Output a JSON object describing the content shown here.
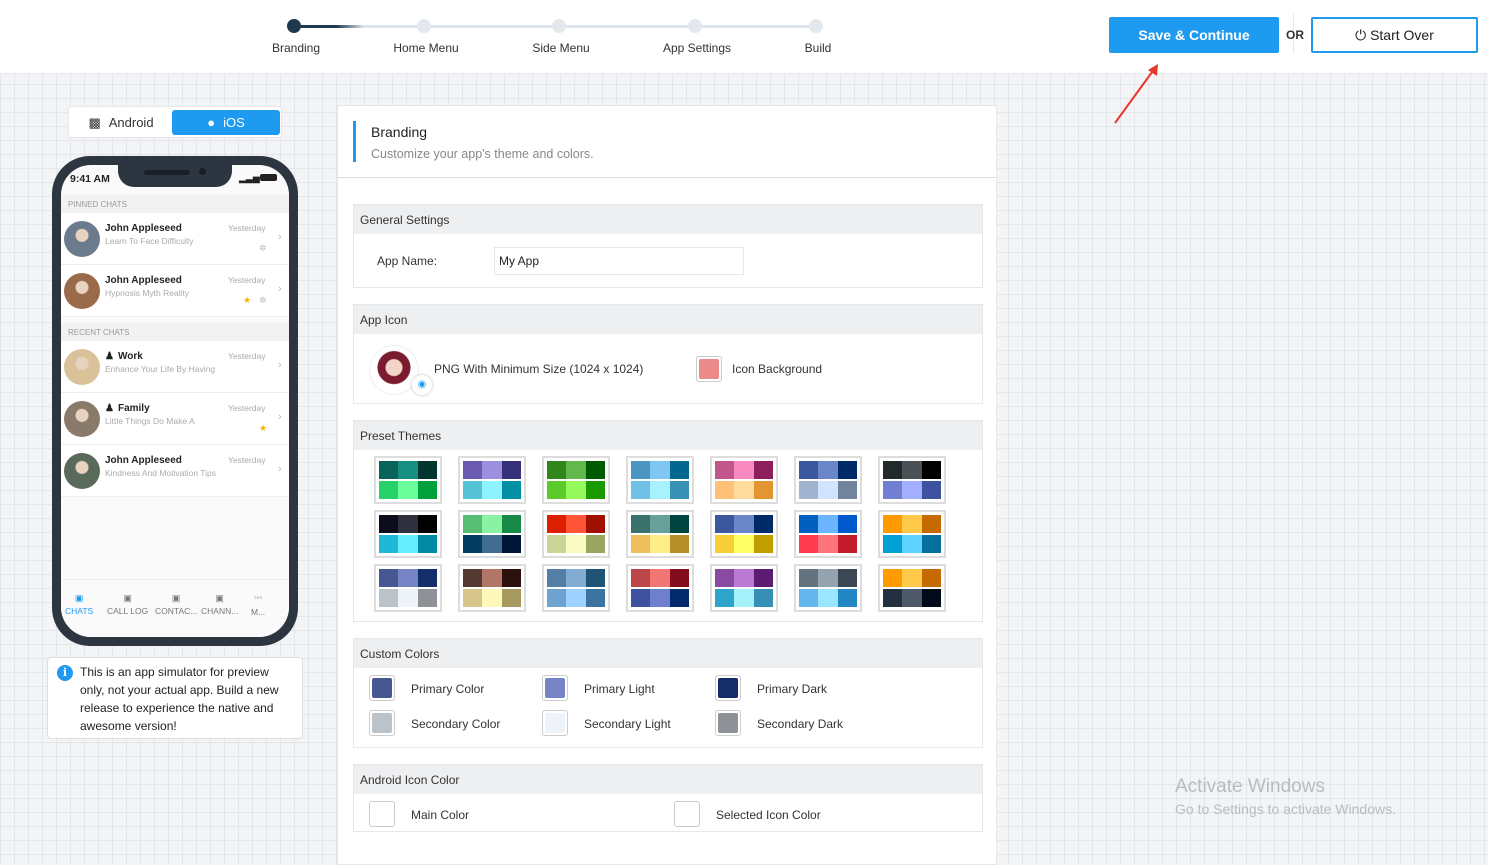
{
  "stepper": {
    "steps": [
      "Branding",
      "Home Menu",
      "Side Menu",
      "App Settings",
      "Build"
    ],
    "active": 0
  },
  "actions": {
    "save": "Save & Continue",
    "or": "OR",
    "start_over": "Start Over",
    "accent": "#1e9bf0"
  },
  "platform_tabs": {
    "android": "Android",
    "ios": "iOS",
    "selected": "iOS"
  },
  "phone": {
    "time": "9:41 AM",
    "pinned_label": "PINNED CHATS",
    "recent_label": "RECENT CHATS",
    "pinned": [
      {
        "name": "John Appleseed",
        "message": "Learn To Face Difficulty",
        "time": "Yesterday",
        "pinned": true,
        "starred": false
      },
      {
        "name": "John Appleseed",
        "message": "Hypnosis Myth Reality",
        "time": "Yesterday",
        "pinned": true,
        "starred": true
      }
    ],
    "recent": [
      {
        "name": "Work",
        "message": "Enhance Your Life By Having",
        "time": "Yesterday",
        "group": true,
        "starred": false
      },
      {
        "name": "Family",
        "message": "Little Things Do Make A",
        "time": "Yesterday",
        "group": true,
        "starred": true
      },
      {
        "name": "John Appleseed",
        "message": "Kindness And Motivation Tips",
        "time": "Yesterday",
        "group": false,
        "starred": false
      }
    ],
    "nav": [
      "CHATS",
      "CALL LOG",
      "CONTAC...",
      "CHANN...",
      "M..."
    ]
  },
  "info_note": "This is an app simulator for preview only, not your actual app. Build a new release to experience the native and awesome version!",
  "branding": {
    "title": "Branding",
    "subtitle": "Customize your app's theme and colors."
  },
  "general": {
    "header": "General Settings",
    "app_name_label": "App Name:",
    "app_name_value": "My App"
  },
  "app_icon": {
    "header": "App Icon",
    "hint": "PNG With Minimum Size (1024 x 1024)",
    "background_label": "Icon Background",
    "background_color": "#ec8a8a"
  },
  "preset_themes": {
    "header": "Preset Themes",
    "themes": [
      [
        "#0a6358",
        "#168f80",
        "#023430",
        "#25d36a",
        "#6bff9c",
        "#00a03c"
      ],
      [
        "#6a5bb0",
        "#9b8fe0",
        "#35307a",
        "#56c2d6",
        "#8ff2ff",
        "#008fa3"
      ],
      [
        "#2f871c",
        "#62b84a",
        "#005a00",
        "#5dca2b",
        "#94fa5a",
        "#1b9a00"
      ],
      [
        "#4b95c2",
        "#7fc6f0",
        "#02688f",
        "#6fc1e5",
        "#a8f1ff",
        "#3892b6"
      ],
      [
        "#c0568a",
        "#f98abf",
        "#8e1f5d",
        "#ffc176",
        "#ffdc9c",
        "#e29532"
      ],
      [
        "#3b579d",
        "#6b86c8",
        "#002b69",
        "#a0b4d0",
        "#d1e4ff",
        "#71849e"
      ],
      [
        "#22292c",
        "#4b5256",
        "#000000",
        "#717fd2",
        "#a3aefe",
        "#3d52a0"
      ],
      [
        "#0c0c1c",
        "#30303f",
        "#000000",
        "#20b8d8",
        "#66eeff",
        "#008aa6"
      ],
      [
        "#57bd73",
        "#8af2a2",
        "#168a46",
        "#033e62",
        "#416b91",
        "#001638"
      ],
      [
        "#dc1f00",
        "#ff5536",
        "#a01000",
        "#cbd595",
        "#f9fbc3",
        "#9ba462"
      ],
      [
        "#3a716c",
        "#68a09a",
        "#004540",
        "#edbe5c",
        "#feee89",
        "#b68f2a"
      ],
      [
        "#3b579d",
        "#6b86c8",
        "#002b69",
        "#f7ce35",
        "#ffff66",
        "#c09e00"
      ],
      [
        "#0060c0",
        "#6cb4ff",
        "#005ace",
        "#ff3b4d",
        "#ff737a",
        "#c31d2b"
      ],
      [
        "#ff9b00",
        "#ffc94a",
        "#c56a00",
        "#00a0d2",
        "#5ed2ff",
        "#0570a0"
      ],
      [
        "#465792",
        "#7684c6",
        "#132e68",
        "#bbc3c8",
        "#eef3f9",
        "#8e9297"
      ],
      [
        "#553933",
        "#b17668",
        "#2b120c",
        "#d7c68c",
        "#fff8bb",
        "#a69a61"
      ],
      [
        "#547fa4",
        "#83acd5",
        "#1f5474",
        "#6da3ce",
        "#9ed3ff",
        "#3b74a0"
      ],
      [
        "#bc454a",
        "#f27673",
        "#840d1d",
        "#3e52a0",
        "#6f7fd0",
        "#022b6d"
      ],
      [
        "#894aa2",
        "#bb79d3",
        "#5c1c72",
        "#2fa4cb",
        "#a6f2fb",
        "#3590b4"
      ],
      [
        "#65737f",
        "#95a3ae",
        "#3b4753",
        "#65b6ef",
        "#9ae5ff",
        "#2386c4"
      ],
      [
        "#ff9b00",
        "#ffc94a",
        "#c56a00",
        "#23303f",
        "#4d5868",
        "#000a1a"
      ]
    ]
  },
  "custom_colors": {
    "header": "Custom Colors",
    "items": [
      {
        "label": "Primary Color",
        "color": "#465792"
      },
      {
        "label": "Primary Light",
        "color": "#7684c6"
      },
      {
        "label": "Primary Dark",
        "color": "#132e68"
      },
      {
        "label": "Secondary Color",
        "color": "#bbc3c8"
      },
      {
        "label": "Secondary Light",
        "color": "#eef3f9"
      },
      {
        "label": "Secondary Dark",
        "color": "#8e9297"
      }
    ]
  },
  "android_icon": {
    "header": "Android Icon Color",
    "items": [
      {
        "label": "Main Color",
        "color": "#ffffff"
      },
      {
        "label": "Selected Icon Color",
        "color": "#ffffff"
      }
    ]
  },
  "watermark": {
    "line1": "Activate Windows",
    "line2": "Go to Settings to activate Windows."
  }
}
